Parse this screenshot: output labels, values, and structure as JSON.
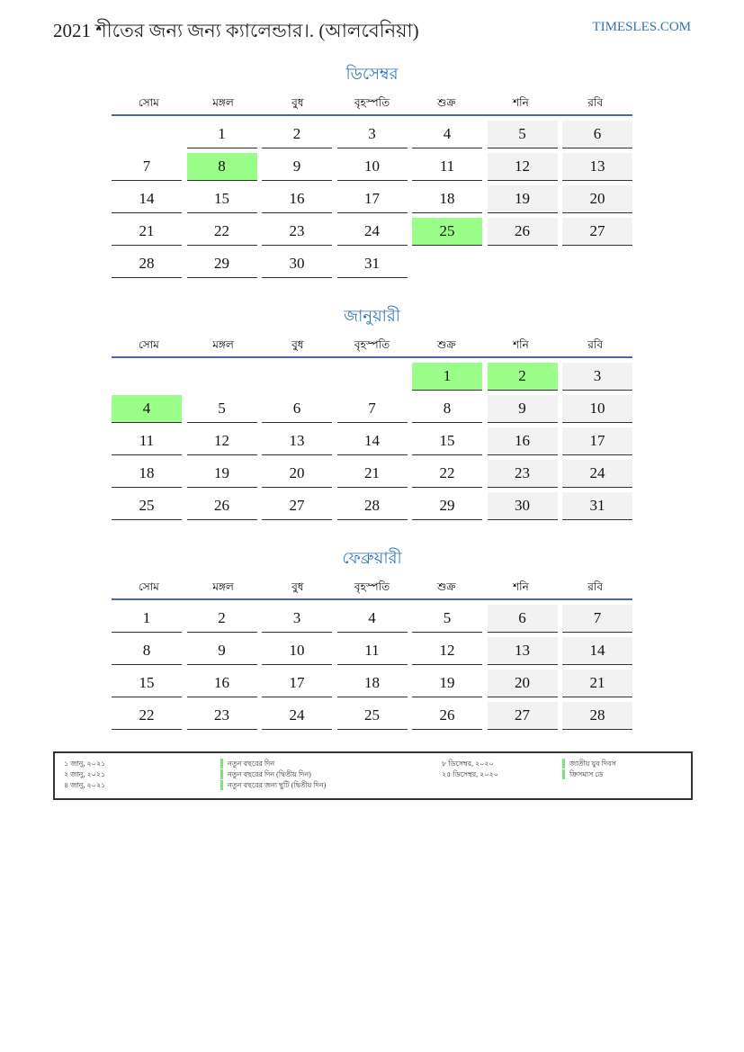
{
  "header": {
    "title": "2021 শীতের জন্য জন্য ক্যালেন্ডার।. (আলবেনিয়া)",
    "site": "TIMESLES.COM"
  },
  "weekdays": [
    "সোম",
    "মঙ্গল",
    "বুধ",
    "বৃহস্পতি",
    "শুক্র",
    "শনি",
    "রবি"
  ],
  "colors": {
    "holiday": "#99ff88",
    "weekend": "#f2f2f2",
    "accent": "#2e75b6"
  },
  "months": [
    {
      "name": "ডিসেম্বর",
      "offset": 1,
      "days": 31,
      "holidays": [
        8,
        25
      ]
    },
    {
      "name": "জানুয়ারী",
      "offset": 4,
      "days": 31,
      "holidays": [
        1,
        2,
        4
      ]
    },
    {
      "name": "ফেব্রুয়ারী",
      "offset": 0,
      "days": 28,
      "holidays": []
    }
  ],
  "legend": {
    "left": [
      {
        "date": "১ জানু, ২০২১",
        "name": "নতুন বছরের দিন"
      },
      {
        "date": "২ জানু, ২০২১",
        "name": "নতুন বছরের দিন (দ্বিতীয় দিন)"
      },
      {
        "date": "৪ জানু, ২০২১",
        "name": "নতুন বছরের জন্য ছুটি (দ্বিতীয় দিন)"
      }
    ],
    "right": [
      {
        "date": "৮ ডিসেম্বর, ২০২০",
        "name": "জাতীয় যুব দিবস"
      },
      {
        "date": "২৫ ডিসেম্বর, ২০২০",
        "name": "ক্রিসমাস ডে"
      }
    ]
  }
}
